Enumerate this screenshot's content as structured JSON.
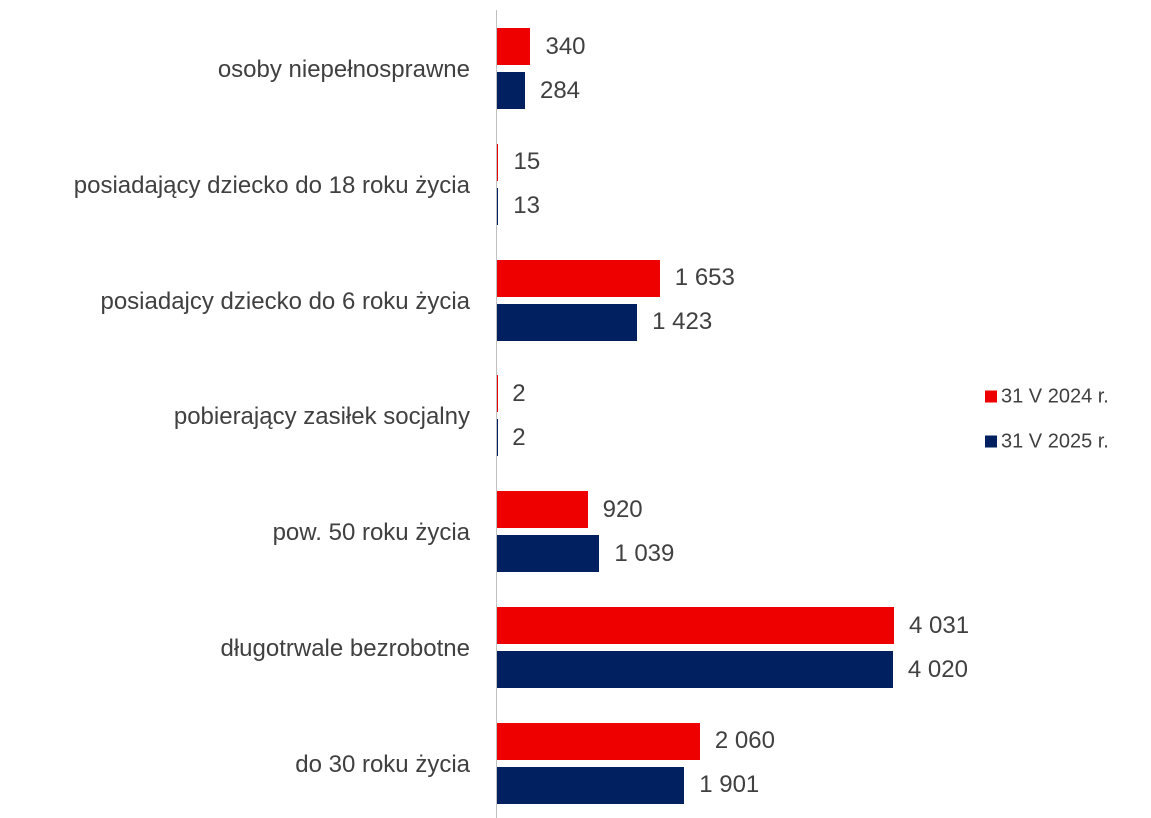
{
  "chart_data": {
    "type": "bar",
    "orientation": "horizontal",
    "categories": [
      "osoby niepełnosprawne",
      "posiadający dziecko do 18 roku życia",
      "posiadajcy dziecko do 6 roku życia",
      "pobierający zasiłek socjalny",
      "pow. 50 roku życia",
      "długotrwale bezrobotne",
      "do 30 roku życia"
    ],
    "series": [
      {
        "name": "31 V 2024 r.",
        "color": "#ee0000",
        "values": [
          340,
          15,
          1653,
          2,
          920,
          4031,
          2060
        ],
        "value_labels": [
          "340",
          "15",
          "1 653",
          "2",
          "920",
          "4 031",
          "2 060"
        ]
      },
      {
        "name": "31 V 2025 r.",
        "color": "#002060",
        "values": [
          284,
          13,
          1423,
          2,
          1039,
          4020,
          1901
        ],
        "value_labels": [
          "284",
          "13",
          "1 423",
          "2",
          "1 039",
          "4 020",
          "1 901"
        ]
      }
    ],
    "legend": "right"
  }
}
